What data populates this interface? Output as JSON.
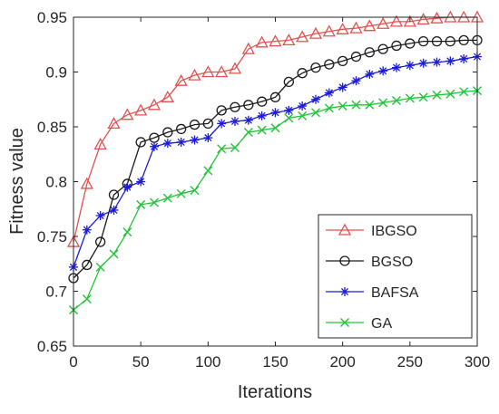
{
  "chart_data": {
    "type": "line",
    "xlabel": "Iterations",
    "ylabel": "Fitness value",
    "xlim": [
      0,
      300
    ],
    "ylim": [
      0.65,
      0.95
    ],
    "xticks": [
      0,
      50,
      100,
      150,
      200,
      250,
      300
    ],
    "yticks": [
      0.65,
      0.7,
      0.75,
      0.8,
      0.85,
      0.9,
      0.95
    ],
    "xtick_labels": [
      "0",
      "50",
      "100",
      "150",
      "200",
      "250",
      "300"
    ],
    "ytick_labels": [
      "0.65",
      "0.7",
      "0.75",
      "0.8",
      "0.85",
      "0.9",
      "0.95"
    ],
    "grid": false,
    "legend_position": "lower-right",
    "x": [
      0,
      10,
      20,
      30,
      40,
      50,
      60,
      70,
      80,
      90,
      100,
      110,
      120,
      130,
      140,
      150,
      160,
      170,
      180,
      190,
      200,
      210,
      220,
      230,
      240,
      250,
      260,
      270,
      280,
      290,
      300
    ],
    "series": [
      {
        "name": "IBGSO",
        "color": "#e0524f",
        "marker": "triangle",
        "values": [
          0.745,
          0.798,
          0.834,
          0.853,
          0.861,
          0.865,
          0.87,
          0.877,
          0.892,
          0.897,
          0.9,
          0.9,
          0.903,
          0.921,
          0.927,
          0.928,
          0.929,
          0.932,
          0.935,
          0.937,
          0.939,
          0.94,
          0.942,
          0.944,
          0.946,
          0.946,
          0.948,
          0.949,
          0.95,
          0.95,
          0.95
        ]
      },
      {
        "name": "BGSO",
        "color": "#1a1a1a",
        "marker": "circle",
        "values": [
          0.712,
          0.724,
          0.745,
          0.788,
          0.798,
          0.836,
          0.84,
          0.845,
          0.848,
          0.852,
          0.853,
          0.865,
          0.868,
          0.87,
          0.873,
          0.877,
          0.891,
          0.899,
          0.904,
          0.907,
          0.91,
          0.914,
          0.918,
          0.921,
          0.924,
          0.926,
          0.928,
          0.928,
          0.928,
          0.929,
          0.929
        ]
      },
      {
        "name": "BAFSA",
        "color": "#1c1cd6",
        "marker": "star",
        "values": [
          0.722,
          0.756,
          0.769,
          0.774,
          0.795,
          0.8,
          0.832,
          0.835,
          0.836,
          0.838,
          0.84,
          0.853,
          0.855,
          0.856,
          0.86,
          0.863,
          0.865,
          0.869,
          0.875,
          0.881,
          0.886,
          0.892,
          0.898,
          0.901,
          0.904,
          0.906,
          0.908,
          0.909,
          0.91,
          0.912,
          0.914
        ]
      },
      {
        "name": "GA",
        "color": "#22c43a",
        "marker": "x",
        "values": [
          0.683,
          0.693,
          0.722,
          0.734,
          0.754,
          0.779,
          0.781,
          0.785,
          0.789,
          0.792,
          0.81,
          0.83,
          0.831,
          0.845,
          0.847,
          0.849,
          0.858,
          0.86,
          0.863,
          0.867,
          0.869,
          0.87,
          0.87,
          0.872,
          0.874,
          0.876,
          0.877,
          0.879,
          0.88,
          0.882,
          0.883
        ]
      }
    ]
  }
}
